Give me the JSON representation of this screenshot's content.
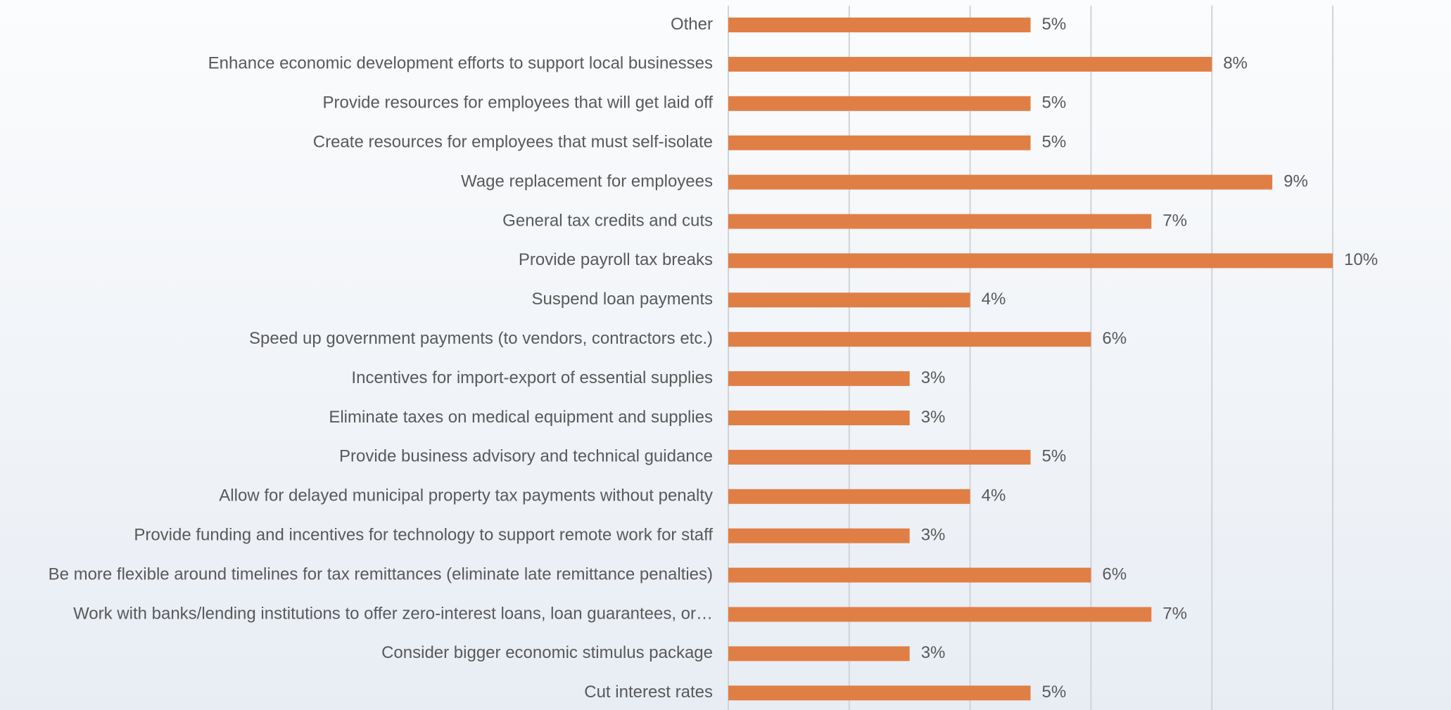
{
  "chart_data": {
    "type": "barh",
    "categories": [
      "Other",
      "Enhance economic development efforts to support local businesses",
      "Provide resources for employees that will get laid off",
      "Create resources for employees that must self-isolate",
      "Wage replacement for employees",
      "General tax credits and cuts",
      "Provide payroll tax breaks",
      "Suspend loan payments",
      "Speed up government payments (to vendors, contractors etc.)",
      "Incentives for import-export of essential supplies",
      "Eliminate taxes on medical equipment and supplies",
      "Provide business advisory and technical guidance",
      "Allow for delayed municipal property tax payments without penalty",
      "Provide funding and incentives for technology to support remote work for staff",
      "Be more flexible around timelines for tax remittances (eliminate late remittance penalties)",
      "Work with banks/lending institutions to offer zero-interest loans, loan guarantees, or…",
      "Consider bigger economic stimulus package",
      "Cut interest rates"
    ],
    "values": [
      5,
      8,
      5,
      5,
      9,
      7,
      10,
      4,
      6,
      3,
      3,
      5,
      4,
      3,
      6,
      7,
      3,
      5
    ],
    "value_labels": [
      "5%",
      "8%",
      "5%",
      "5%",
      "9%",
      "7%",
      "10%",
      "4%",
      "6%",
      "3%",
      "3%",
      "5%",
      "4%",
      "3%",
      "6%",
      "7%",
      "3%",
      "5%"
    ],
    "color": "#e07f45",
    "xlim": [
      0,
      10
    ],
    "xticks": [
      0,
      2,
      4,
      6,
      8,
      10
    ],
    "grid": true
  }
}
